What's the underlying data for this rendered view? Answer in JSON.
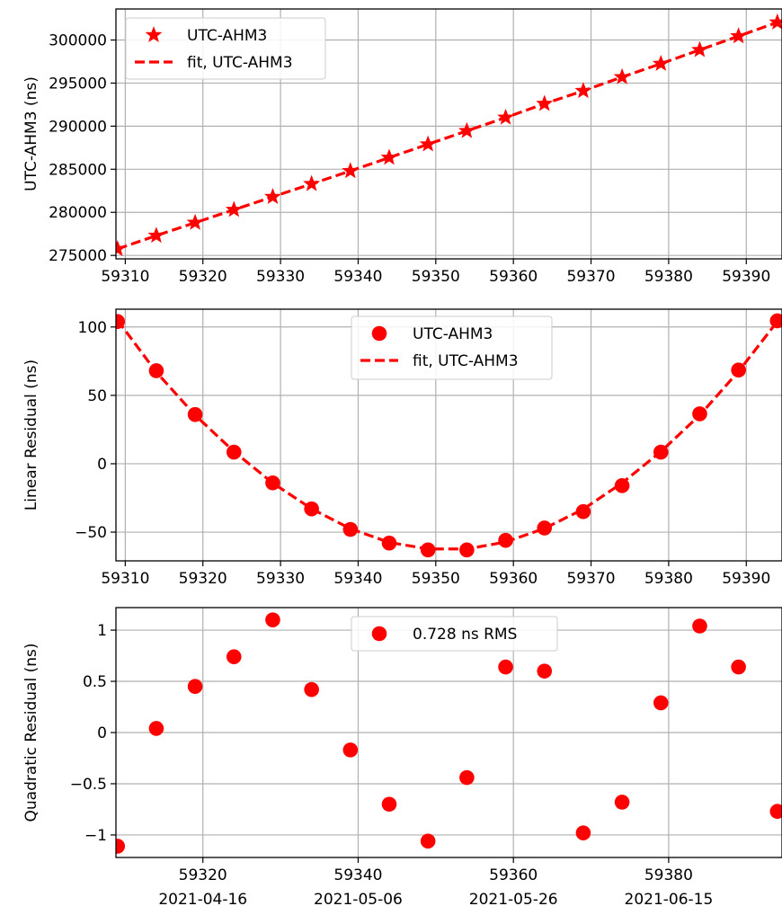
{
  "colors": {
    "series": "#ff0000",
    "grid": "#b0b0b0"
  },
  "chart_data": [
    {
      "type": "line",
      "ylabel": "UTC-AHM3 (ns)",
      "xlim": [
        59308.8,
        59394.6
      ],
      "ylim": [
        274600,
        303600
      ],
      "xticks": [
        59310,
        59320,
        59330,
        59340,
        59350,
        59360,
        59370,
        59380,
        59390
      ],
      "yticks": [
        275000,
        280000,
        285000,
        290000,
        295000,
        300000
      ],
      "legend": {
        "position": "top-left",
        "entries": [
          "UTC-AHM3",
          "fit, UTC-AHM3"
        ]
      },
      "grid": true,
      "series": [
        {
          "name": "UTC-AHM3",
          "marker": "star",
          "linestyle": "none",
          "x": [
            59309,
            59314,
            59319,
            59324,
            59329,
            59334,
            59339,
            59344,
            59349,
            59354,
            59359,
            59364,
            59369,
            59374,
            59379,
            59384,
            59389,
            59394
          ],
          "y": [
            275750,
            277300,
            278800,
            280300,
            281800,
            283300,
            284800,
            286350,
            287900,
            289450,
            291000,
            292600,
            294100,
            295700,
            297250,
            298850,
            300450,
            302050
          ]
        },
        {
          "name": "fit, UTC-AHM3",
          "marker": "none",
          "linestyle": "dashed",
          "x": [
            59309,
            59314,
            59319,
            59324,
            59329,
            59334,
            59339,
            59344,
            59349,
            59354,
            59359,
            59364,
            59369,
            59374,
            59379,
            59384,
            59389,
            59394
          ],
          "y": [
            275750,
            277300,
            278800,
            280300,
            281800,
            283300,
            284800,
            286350,
            287900,
            289450,
            291000,
            292600,
            294100,
            295700,
            297250,
            298850,
            300450,
            302050
          ]
        }
      ]
    },
    {
      "type": "line",
      "ylabel": "Linear Residual (ns)",
      "xlim": [
        59308.8,
        59394.6
      ],
      "ylim": [
        -71,
        113
      ],
      "xticks": [
        59310,
        59320,
        59330,
        59340,
        59350,
        59360,
        59370,
        59380,
        59390
      ],
      "yticks": [
        -50,
        0,
        50,
        100
      ],
      "legend": {
        "position": "top-center",
        "entries": [
          "UTC-AHM3",
          "fit, UTC-AHM3"
        ]
      },
      "grid": true,
      "series": [
        {
          "name": "UTC-AHM3",
          "marker": "circle",
          "linestyle": "none",
          "x": [
            59309,
            59314,
            59319,
            59324,
            59329,
            59334,
            59339,
            59344,
            59349,
            59354,
            59359,
            59364,
            59369,
            59374,
            59379,
            59384,
            59389,
            59394
          ],
          "y": [
            104,
            68,
            36,
            8.5,
            -14,
            -33,
            -48,
            -58,
            -63,
            -63,
            -56,
            -47,
            -35,
            -16,
            8.5,
            36.5,
            68.5,
            104.5
          ]
        },
        {
          "name": "fit, UTC-AHM3",
          "marker": "none",
          "linestyle": "dashed",
          "x": [
            59309,
            59314,
            59319,
            59324,
            59329,
            59334,
            59339,
            59344,
            59349,
            59354,
            59359,
            59364,
            59369,
            59374,
            59379,
            59384,
            59389,
            59394
          ],
          "y": [
            105,
            67,
            35.5,
            8.9,
            -14.1,
            -32.9,
            -47.5,
            -57.5,
            -62.3,
            -62.3,
            -57.2,
            -47.3,
            -33.2,
            -14.1,
            8.9,
            35.5,
            67.5,
            104
          ]
        }
      ]
    },
    {
      "type": "scatter",
      "ylabel": "Quadratic Residual (ns)",
      "xlim": [
        59308.8,
        59394.6
      ],
      "ylim": [
        -1.22,
        1.22
      ],
      "xticks": [
        59320,
        59340,
        59360,
        59380
      ],
      "xtick_dates": [
        "2021-04-16",
        "2021-05-06",
        "2021-05-26",
        "2021-06-15"
      ],
      "yticks": [
        -1.0,
        -0.5,
        0.0,
        0.5,
        1.0
      ],
      "legend": {
        "position": "top-center",
        "entries": [
          "0.728 ns RMS"
        ]
      },
      "grid": true,
      "series": [
        {
          "name": "0.728 ns RMS",
          "marker": "circle",
          "linestyle": "none",
          "x": [
            59309,
            59314,
            59319,
            59324,
            59329,
            59334,
            59339,
            59344,
            59349,
            59354,
            59359,
            59364,
            59369,
            59374,
            59379,
            59384,
            59389,
            59394
          ],
          "y": [
            -1.11,
            0.04,
            0.45,
            0.74,
            1.1,
            0.42,
            -0.17,
            -0.7,
            -1.06,
            -0.44,
            0.64,
            0.6,
            -0.98,
            -0.68,
            0.29,
            1.04,
            0.64,
            -0.77
          ]
        }
      ]
    }
  ]
}
